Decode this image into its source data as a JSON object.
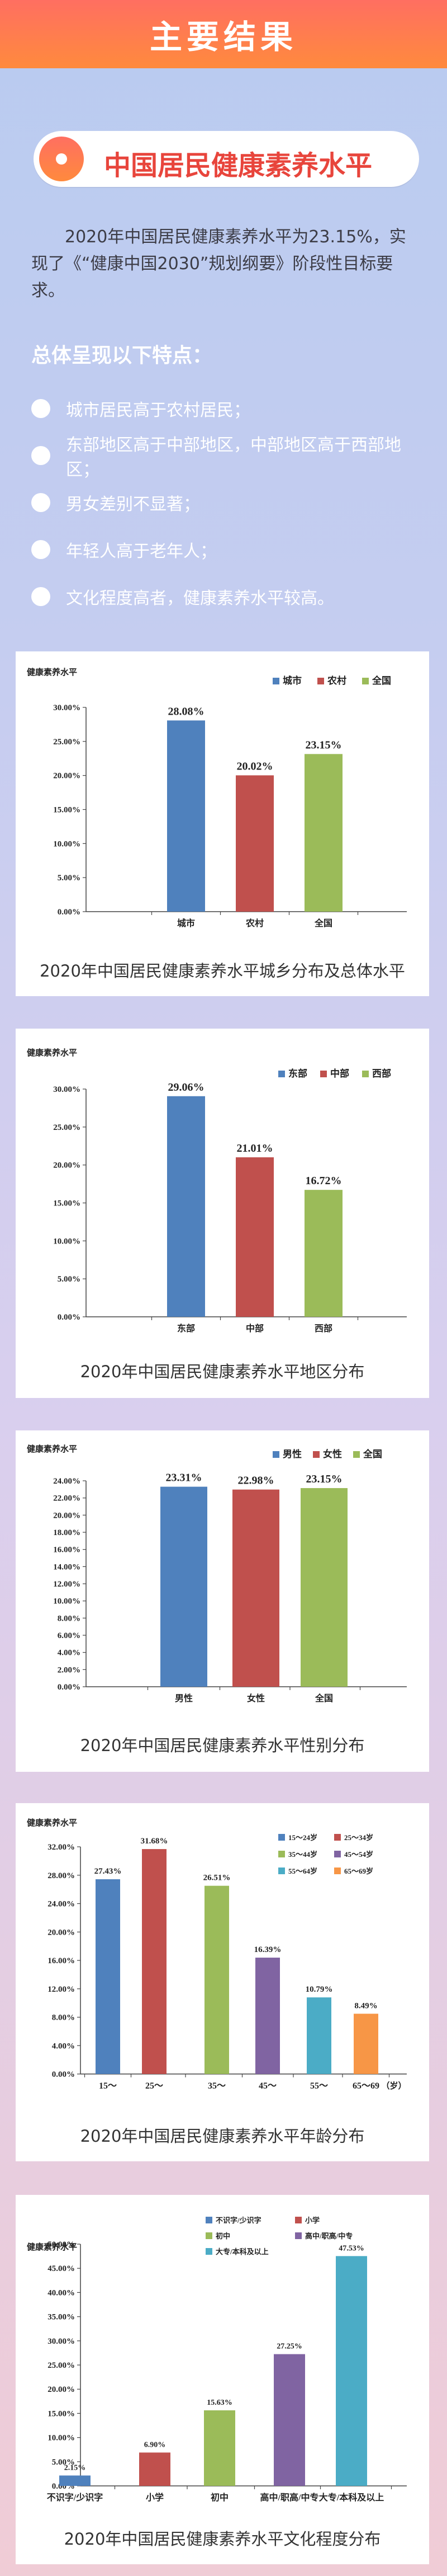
{
  "header": {
    "title": "主要结果"
  },
  "section": {
    "title": "中国居民健康素养水平"
  },
  "intro": "2020年中国居民健康素养水平为23.15%，实现了《“健康中国2030”规划纲要》阶段性目标要求。",
  "subhead": "总体呈现以下特点：",
  "features": [
    "城市居民高于农村居民；",
    "东部地区高于中部地区，中部地区高于西部地区；",
    "男女差别不显著；",
    "年轻人高于老年人；",
    "文化程度高者，健康素养水平较高。"
  ],
  "chart_data": [
    {
      "type": "bar",
      "ylabel": "健康素养水平",
      "categories": [
        "城市",
        "农村",
        "全国"
      ],
      "values": [
        28.08,
        20.02,
        23.15
      ],
      "value_labels": [
        "28.08%",
        "20.02%",
        "23.15%"
      ],
      "legend": [
        "城市",
        "农村",
        "全国"
      ],
      "colors": [
        "#4f81bd",
        "#c0504d",
        "#9bbb59"
      ],
      "ylim": [
        0,
        30
      ],
      "yticks": [
        "0.00%",
        "5.00%",
        "10.00%",
        "15.00%",
        "20.00%",
        "25.00%",
        "30.00%"
      ],
      "x_unit": "",
      "legend_placement": "top-right",
      "caption": "2020年中国居民健康素养水平城乡分布及总体水平"
    },
    {
      "type": "bar",
      "ylabel": "健康素养水平",
      "categories": [
        "东部",
        "中部",
        "西部"
      ],
      "values": [
        29.06,
        21.01,
        16.72
      ],
      "value_labels": [
        "29.06%",
        "21.01%",
        "16.72%"
      ],
      "legend": [
        "东部",
        "中部",
        "西部"
      ],
      "colors": [
        "#4f81bd",
        "#c0504d",
        "#9bbb59"
      ],
      "ylim": [
        0,
        30
      ],
      "yticks": [
        "0.00%",
        "5.00%",
        "10.00%",
        "15.00%",
        "20.00%",
        "25.00%",
        "30.00%"
      ],
      "x_unit": "",
      "legend_placement": "top-right",
      "caption": "2020年中国居民健康素养水平地区分布"
    },
    {
      "type": "bar",
      "ylabel": "健康素养水平",
      "categories": [
        "男性",
        "女性",
        "全国"
      ],
      "values": [
        23.31,
        22.98,
        23.15
      ],
      "value_labels": [
        "23.31%",
        "22.98%",
        "23.15%"
      ],
      "legend": [
        "男性",
        "女性",
        "全国"
      ],
      "colors": [
        "#4f81bd",
        "#c0504d",
        "#9bbb59"
      ],
      "ylim": [
        0,
        24
      ],
      "yticks": [
        "0.00%",
        "2.00%",
        "4.00%",
        "6.00%",
        "8.00%",
        "10.00%",
        "12.00%",
        "14.00%",
        "16.00%",
        "18.00%",
        "20.00%",
        "22.00%",
        "24.00%"
      ],
      "x_unit": "",
      "legend_placement": "top-right",
      "caption": "2020年中国居民健康素养水平性别分布"
    },
    {
      "type": "bar",
      "ylabel": "健康素养水平",
      "categories": [
        "15～",
        "25～",
        "35～",
        "45～",
        "55～",
        "65～69"
      ],
      "values": [
        27.43,
        31.68,
        26.51,
        16.39,
        10.79,
        8.49
      ],
      "value_labels": [
        "27.43%",
        "31.68%",
        "26.51%",
        "16.39%",
        "10.79%",
        "8.49%"
      ],
      "legend": [
        "15～24岁",
        "25～34岁",
        "35～44岁",
        "45～54岁",
        "55～64岁",
        "65～69岁"
      ],
      "colors": [
        "#4f81bd",
        "#c0504d",
        "#9bbb59",
        "#8064a2",
        "#4bacc6",
        "#f79646"
      ],
      "ylim": [
        0,
        32
      ],
      "yticks": [
        "0.00%",
        "4.00%",
        "8.00%",
        "12.00%",
        "16.00%",
        "20.00%",
        "24.00%",
        "28.00%",
        "32.00%"
      ],
      "x_unit": "（岁）",
      "legend_placement": "top-right",
      "caption": "2020年中国居民健康素养水平年龄分布"
    },
    {
      "type": "bar",
      "ylabel": "健康素养水平",
      "categories": [
        "不识字/少识字",
        "小学",
        "初中",
        "高中/职高/中专",
        "大专/本科及以上"
      ],
      "values": [
        2.15,
        6.9,
        15.63,
        27.25,
        47.53
      ],
      "value_labels": [
        "2.15%",
        "6.90%",
        "15.63%",
        "27.25%",
        "47.53%"
      ],
      "legend": [
        "不识字/少识字",
        "小学",
        "初中",
        "高中/职高/中专",
        "大专/本科及以上"
      ],
      "colors": [
        "#4f81bd",
        "#c0504d",
        "#9bbb59",
        "#8064a2",
        "#4bacc6"
      ],
      "ylim": [
        0,
        50
      ],
      "yticks": [
        "0.00%",
        "5.00%",
        "10.00%",
        "15.00%",
        "20.00%",
        "25.00%",
        "30.00%",
        "35.00%",
        "40.00%",
        "45.00%",
        "50.00%"
      ],
      "x_unit": "",
      "legend_placement": "top-right",
      "caption": "2020年中国居民健康素养水平文化程度分布"
    }
  ]
}
